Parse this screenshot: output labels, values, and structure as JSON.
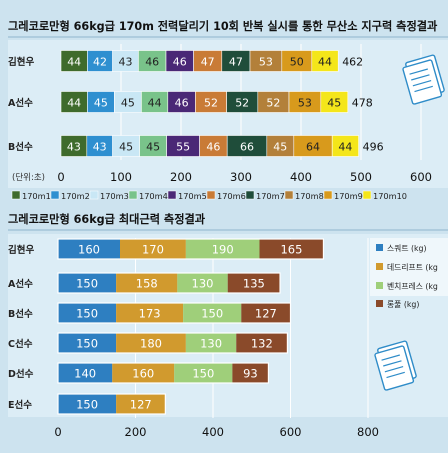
{
  "colors": {
    "background": "#cde3ef",
    "panel": "#dcedf6",
    "title_underline": "#8fb6cc",
    "grid": "#ffffff",
    "chart1_series": [
      "#3f6b2c",
      "#2e8fd0",
      "#c9e7f5",
      "#79c38a",
      "#4a2876",
      "#c97b36",
      "#1f4d3a",
      "#b3803a",
      "#d89a1c",
      "#f4e61a"
    ],
    "chart2_series": [
      "#2e7fc1",
      "#d19a2e",
      "#9fcf7a",
      "#8a4a2a"
    ]
  },
  "icons": [
    "document-stack-icon",
    "document-stack-icon"
  ],
  "chart_data": [
    {
      "type": "bar",
      "orientation": "horizontal",
      "stacked": true,
      "title": "그레코로만형 66kg급 170m 전력달리기 10회 반복 실시를 통한 무산소 지구력 측정결과",
      "unit_label": "(단위:초)",
      "categories": [
        "김현우",
        "A선수",
        "B선수"
      ],
      "series": [
        {
          "name": "170m1",
          "values": [
            44,
            44,
            43
          ]
        },
        {
          "name": "170m2",
          "values": [
            42,
            45,
            43
          ]
        },
        {
          "name": "170m3",
          "values": [
            43,
            45,
            45
          ]
        },
        {
          "name": "170m4",
          "values": [
            46,
            44,
            45
          ]
        },
        {
          "name": "170m5",
          "values": [
            46,
            46,
            55
          ]
        },
        {
          "name": "170m6",
          "values": [
            47,
            52,
            46
          ]
        },
        {
          "name": "170m7",
          "values": [
            47,
            52,
            66
          ]
        },
        {
          "name": "170m8",
          "values": [
            53,
            52,
            45
          ]
        },
        {
          "name": "170m9",
          "values": [
            50,
            53,
            64
          ]
        },
        {
          "name": "170m10",
          "values": [
            44,
            45,
            44
          ]
        }
      ],
      "totals": [
        462,
        478,
        496
      ],
      "xticks": [
        0,
        100,
        200,
        300,
        400,
        500,
        600
      ],
      "xlim": [
        0,
        600
      ],
      "grid": true,
      "legend": "bottom"
    },
    {
      "type": "bar",
      "orientation": "horizontal",
      "stacked": true,
      "title": "그레코로만형 66kg급 최대근력 측정결과",
      "categories": [
        "김현우",
        "A선수",
        "B선수",
        "C선수",
        "D선수",
        "E선수"
      ],
      "series": [
        {
          "name": "스쿼트 (kg)",
          "values": [
            160,
            150,
            150,
            150,
            140,
            150
          ]
        },
        {
          "name": "데드리프트 (kg",
          "values": [
            170,
            158,
            173,
            180,
            160,
            127
          ]
        },
        {
          "name": "벤치프레스 (kg",
          "values": [
            190,
            130,
            150,
            130,
            150,
            null
          ]
        },
        {
          "name": "롱풀 (kg)",
          "values": [
            165,
            135,
            127,
            132,
            93,
            null
          ]
        }
      ],
      "xticks": [
        0,
        200,
        400,
        600,
        800
      ],
      "xlim": [
        0,
        800
      ],
      "grid": true,
      "legend": "right"
    }
  ]
}
